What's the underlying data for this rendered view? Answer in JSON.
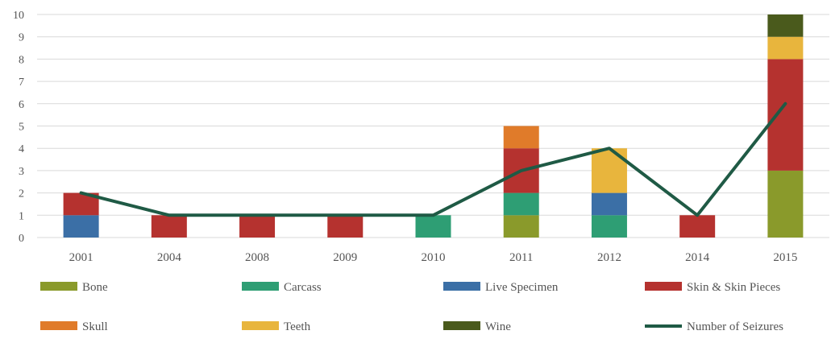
{
  "chart_data": {
    "type": "bar",
    "stacked": true,
    "categories": [
      "2001",
      "2004",
      "2008",
      "2009",
      "2010",
      "2011",
      "2012",
      "2014",
      "2015"
    ],
    "series": [
      {
        "name": "Bone",
        "color": "#8a9a2b",
        "values": [
          0,
          0,
          0,
          0,
          0,
          1,
          0,
          0,
          3
        ]
      },
      {
        "name": "Carcass",
        "color": "#2e9e74",
        "values": [
          0,
          0,
          0,
          0,
          1,
          1,
          1,
          0,
          0
        ]
      },
      {
        "name": "Live Specimen",
        "color": "#3b6fa6",
        "values": [
          1,
          0,
          0,
          0,
          0,
          0,
          1,
          0,
          0
        ]
      },
      {
        "name": "Skin & Skin Pieces",
        "color": "#b5322f",
        "values": [
          1,
          1,
          1,
          1,
          0,
          2,
          0,
          1,
          5
        ]
      },
      {
        "name": "Skull",
        "color": "#e07b2a",
        "values": [
          0,
          0,
          0,
          0,
          0,
          1,
          0,
          0,
          0
        ]
      },
      {
        "name": "Teeth",
        "color": "#e8b53d",
        "values": [
          0,
          0,
          0,
          0,
          0,
          0,
          2,
          0,
          1
        ]
      },
      {
        "name": "Wine",
        "color": "#4a5a1c",
        "values": [
          0,
          0,
          0,
          0,
          0,
          0,
          0,
          0,
          1
        ]
      }
    ],
    "line_series": {
      "name": "Number of Seizures",
      "color": "#1f5a45",
      "values": [
        2,
        1,
        1,
        1,
        1,
        3,
        4,
        1,
        6
      ]
    },
    "ylim": [
      0,
      10
    ],
    "yticks": [
      0,
      1,
      2,
      3,
      4,
      5,
      6,
      7,
      8,
      9,
      10
    ],
    "grid": true,
    "legend_position": "bottom",
    "title": "",
    "xlabel": "",
    "ylabel": ""
  }
}
